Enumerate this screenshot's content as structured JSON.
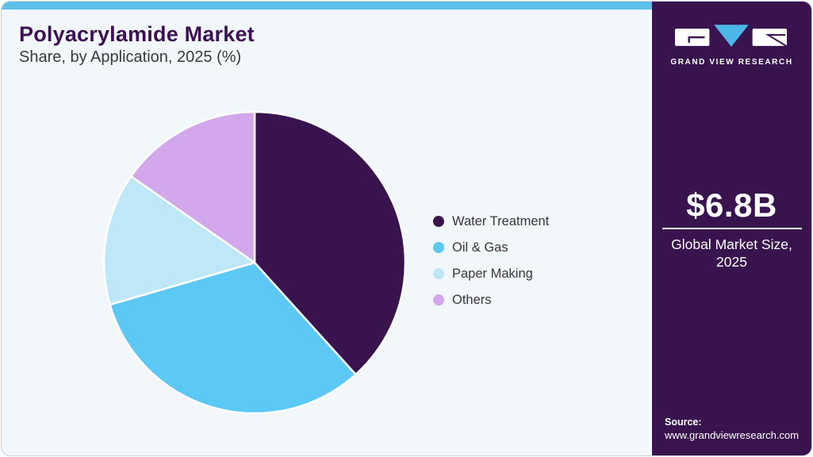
{
  "header": {
    "title": "Polyacrylamide Market",
    "subtitle": "Share, by Application, 2025 (%)"
  },
  "chart_data": {
    "type": "pie",
    "title": "Polyacrylamide Market Share, by Application, 2025 (%)",
    "categories": [
      "Water Treatment",
      "Oil & Gas",
      "Paper Making",
      "Others"
    ],
    "values": [
      38.3,
      32.2,
      14.2,
      15.3
    ],
    "unit": "%",
    "slice_colors": [
      "#38134E",
      "#5BC8F5",
      "#BEE8F8",
      "#D2A7EC"
    ],
    "start_angle_deg": 0,
    "direction": "clockwise",
    "legend_position": "right",
    "slice_gap_color": "#FFFFFF"
  },
  "sidebar": {
    "logo_icon": "gvr-logo",
    "brand_name": "GRAND VIEW RESEARCH",
    "market_size_value": "$6.8B",
    "market_size_caption": "Global Market Size, 2025",
    "source_label": "Source:",
    "source_url": "www.grandviewresearch.com"
  },
  "theme": {
    "topbar_color": "#5CC0E9",
    "card_background": "#F1F7FB",
    "sidebar_background": "#38134E",
    "logo_triangle_color": "#4DB8E8",
    "title_color": "#3C1053",
    "subtitle_color": "#3A3A3A",
    "legend_text_color": "#3A3340"
  }
}
